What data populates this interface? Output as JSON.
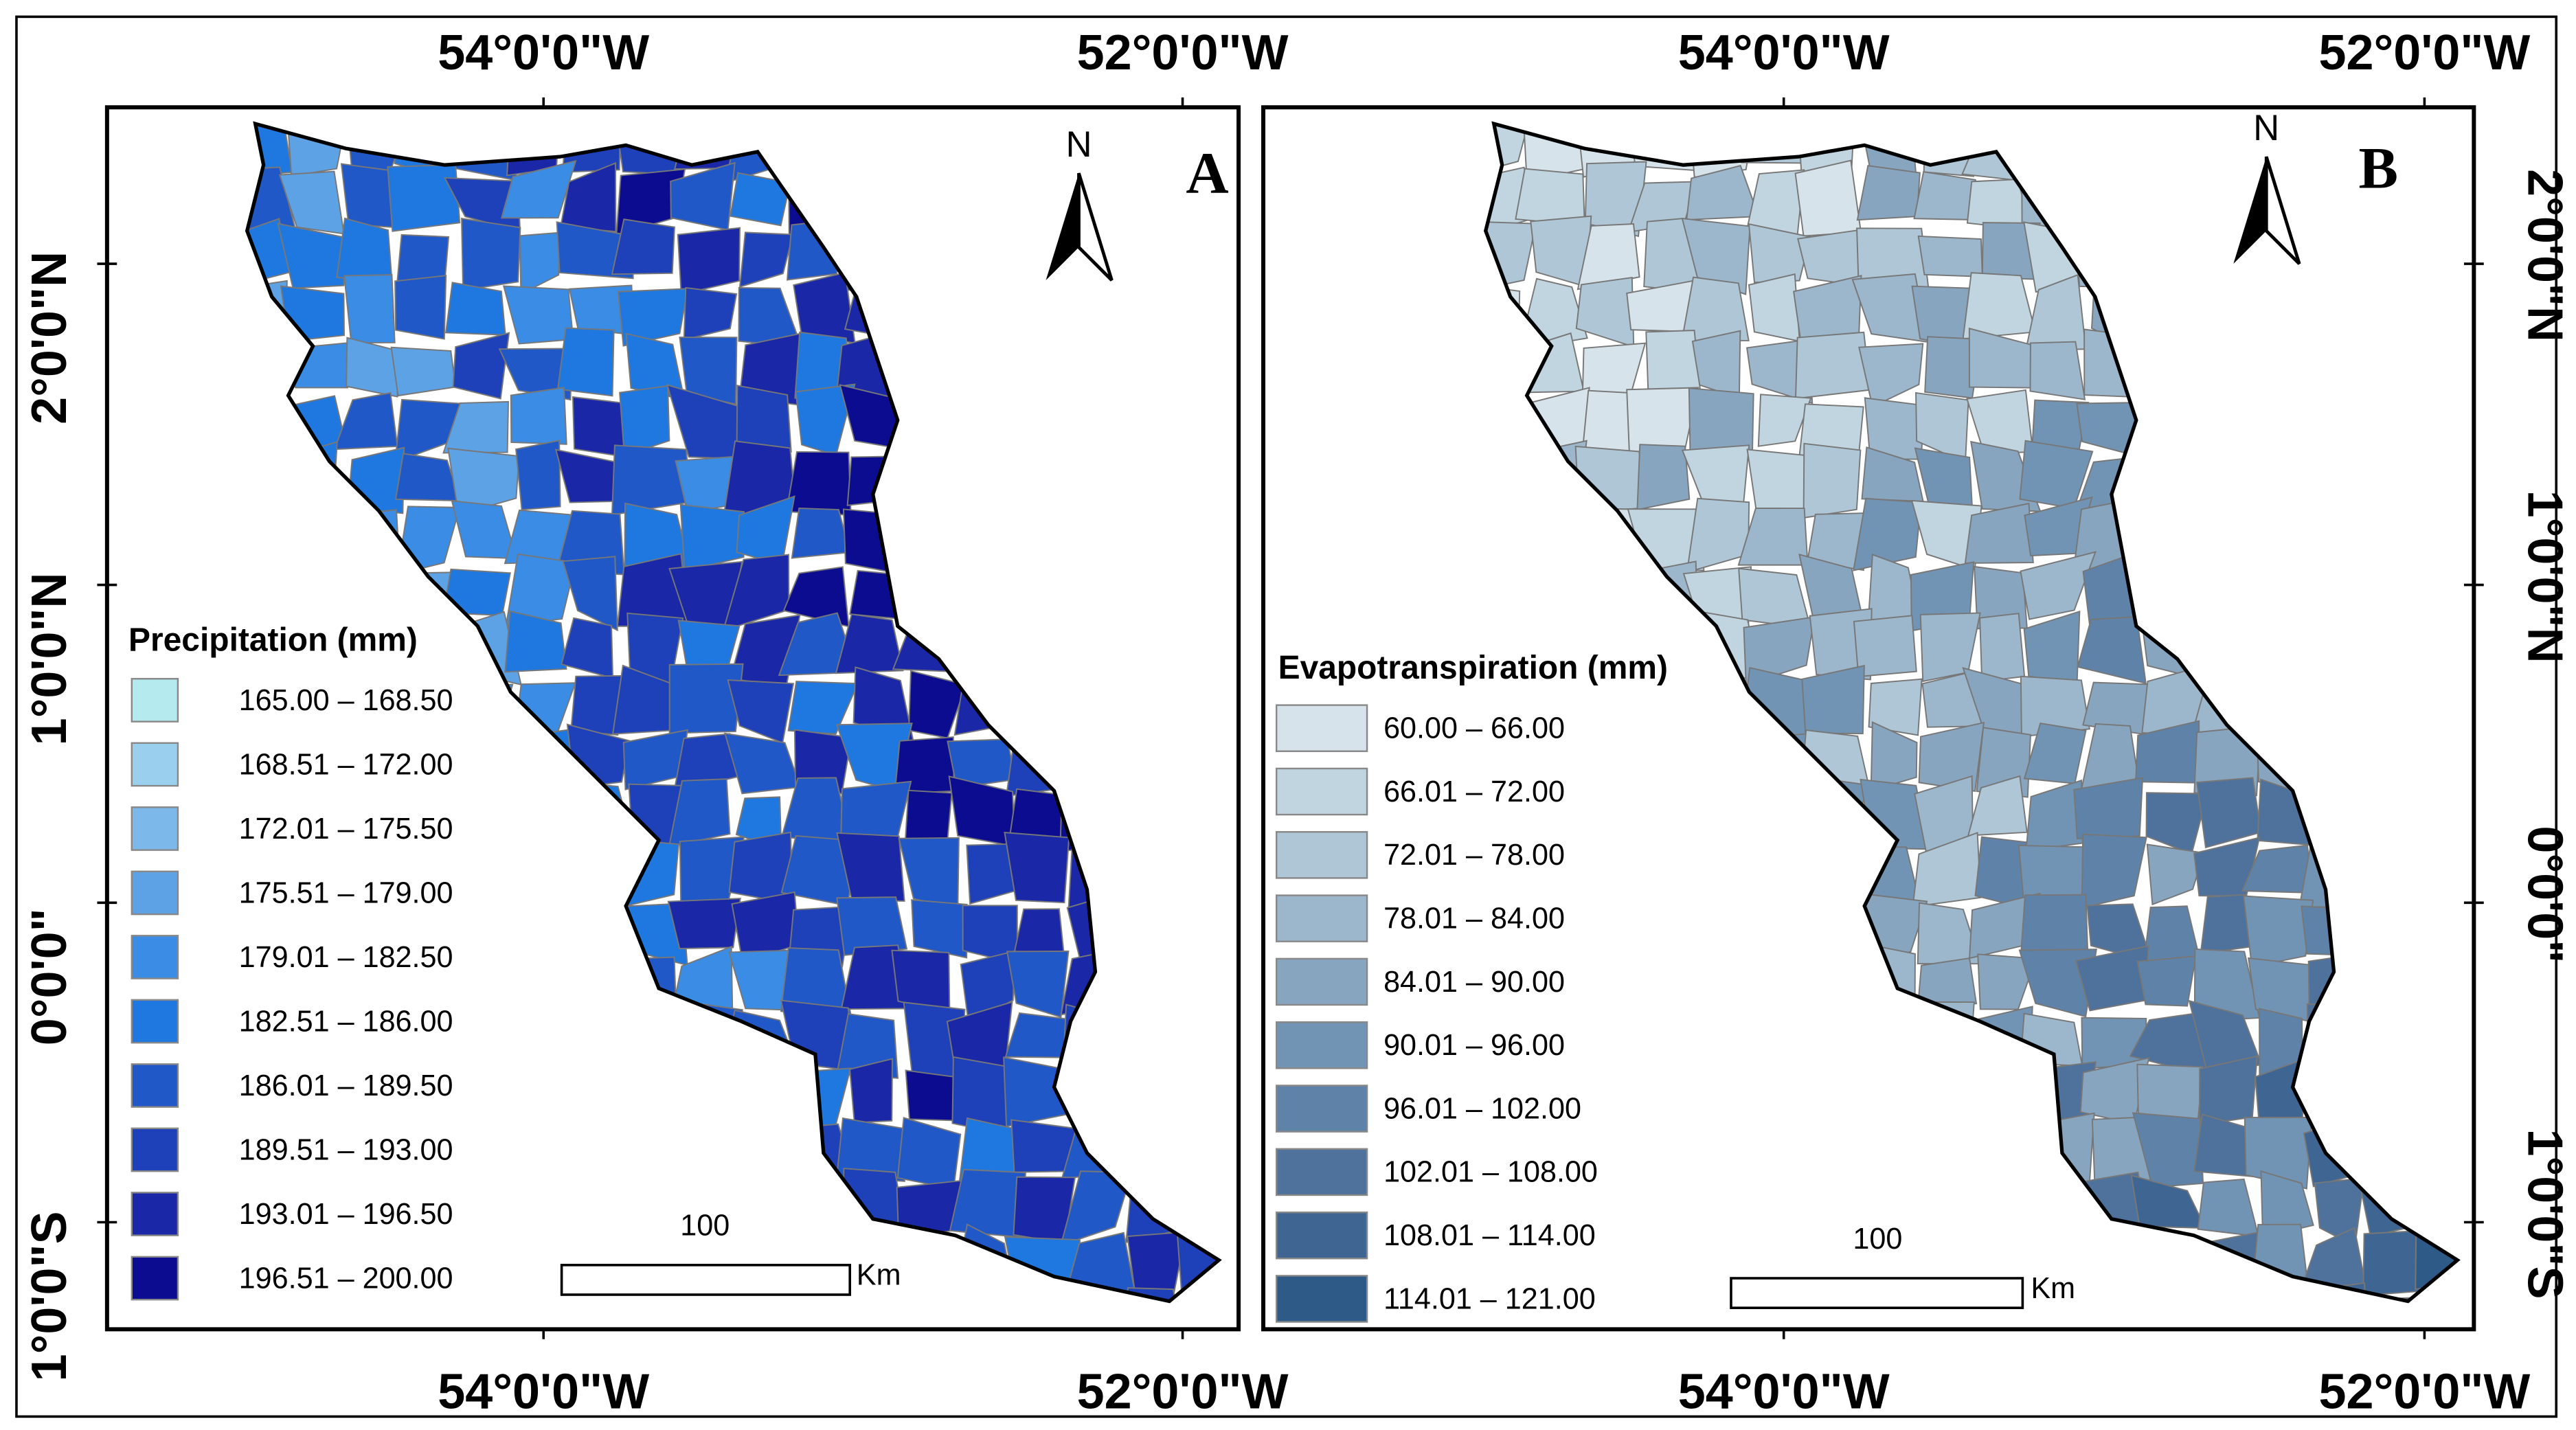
{
  "axes": {
    "longitude": [
      "54°0'0\"W",
      "52°0'0\"W"
    ],
    "latitude": [
      "2°0'0\"N",
      "1°0'0\"N",
      "0°0'0\"",
      "1°0'0\"S"
    ]
  },
  "panels": [
    {
      "label": "A",
      "north": "N",
      "legend": {
        "title": "Precipitation (mm)",
        "items": [
          {
            "label": "165.00  – 168.50",
            "color": "#b5eaee"
          },
          {
            "label": "168.51 – 172.00",
            "color": "#9ad0ee"
          },
          {
            "label": "172.01 – 175.50",
            "color": "#7cb8ea"
          },
          {
            "label": "175.51 – 179.00",
            "color": "#5ea2e6"
          },
          {
            "label": "179.01 – 182.50",
            "color": "#3a8ce4"
          },
          {
            "label": "182.51 – 186.00",
            "color": "#1f78df"
          },
          {
            "label": "186.01 – 189.50",
            "color": "#2158c8"
          },
          {
            "label": "189.51 – 193.00",
            "color": "#1e40b8"
          },
          {
            "label": "193.01 – 196.50",
            "color": "#1a28a8"
          },
          {
            "label": "196.51 – 200.00",
            "color": "#0c0c90"
          }
        ]
      },
      "scale": {
        "distance": 100,
        "unit": "Km"
      }
    },
    {
      "label": "B",
      "north": "N",
      "legend": {
        "title": "Evapotranspiration (mm)",
        "items": [
          {
            "label": "60.00 – 66.00",
            "color": "#d7e3ea"
          },
          {
            "label": "66.01 – 72.00",
            "color": "#c0d5e0"
          },
          {
            "label": "72.01 – 78.00",
            "color": "#aec6d6"
          },
          {
            "label": "78.01 – 84.00",
            "color": "#9cb6cc"
          },
          {
            "label": "84.01 – 90.00",
            "color": "#88a5c0"
          },
          {
            "label": "90.01 – 96.00",
            "color": "#7294b4"
          },
          {
            "label": "96.01 – 102.00",
            "color": "#5e82a8"
          },
          {
            "label": "102.01 – 108.00",
            "color": "#4e729c"
          },
          {
            "label": "108.01 – 114.00",
            "color": "#3f6692"
          },
          {
            "label": "114.01 – 121.00",
            "color": "#2e5a88"
          }
        ]
      },
      "scale": {
        "distance": 100,
        "unit": "Km"
      }
    }
  ]
}
